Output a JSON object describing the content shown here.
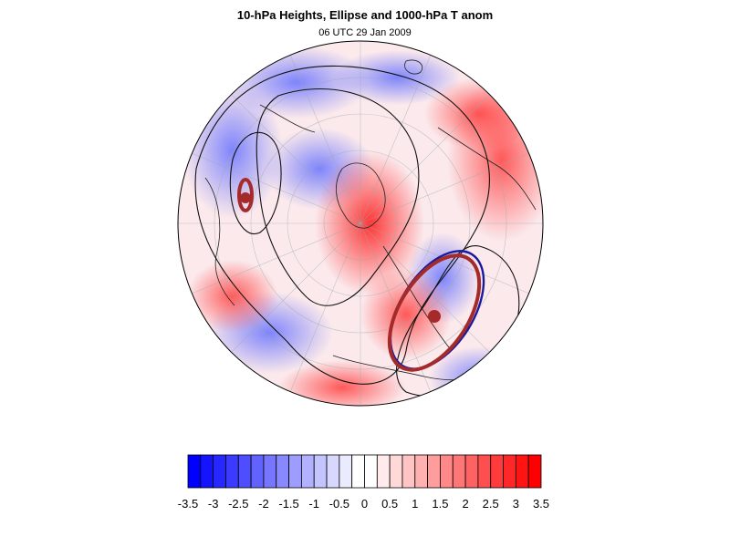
{
  "title": "10-hPa Heights, Ellipse and 1000-hPa T anom",
  "subtitle": "06 UTC 29 Jan 2009",
  "map": {
    "projection": "orthographic-north-polar",
    "field": "1000-hPa T anom",
    "contours": "10-hPa Heights",
    "ellipse_color": "#a52a2a",
    "ellipse_outline_color": "#1a1aa0"
  },
  "colorbar": {
    "min": -3.5,
    "max": 3.5,
    "step": 0.25,
    "negative_color": "#0000ff",
    "positive_color": "#ff0000",
    "labels": [
      "-3.5",
      "-3",
      "-2.5",
      "-2",
      "-1.5",
      "-1",
      "-0.5",
      "0",
      "0.5",
      "1",
      "1.5",
      "2",
      "2.5",
      "3",
      "3.5"
    ]
  }
}
